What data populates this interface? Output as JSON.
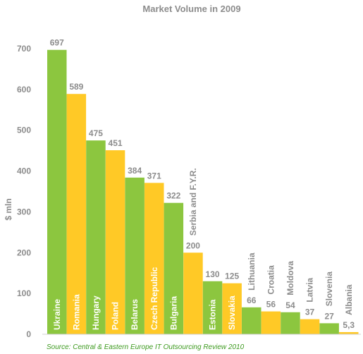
{
  "chart_data": {
    "type": "bar",
    "title": "Market Volume in 2009",
    "ylabel": "$ mln",
    "xlabel": "",
    "ylim": [
      0,
      800
    ],
    "yticks": [
      0,
      100,
      200,
      300,
      400,
      500,
      600,
      700
    ],
    "grid": false,
    "categories": [
      "Ukraine",
      "Romania",
      "Hungary",
      "Poland",
      "Belarus",
      "Czech Republic",
      "Bulgaria",
      "Serbia and F.Y.R.",
      "Estonia",
      "Slovakia",
      "Lithuania",
      "Croatia",
      "Moldova",
      "Latvia",
      "Slovenia",
      "Albania"
    ],
    "values": [
      697,
      589,
      475,
      451,
      384,
      371,
      322,
      200,
      130,
      125,
      66,
      56,
      54,
      37,
      27,
      5.3
    ],
    "value_labels": [
      "697",
      "589",
      "475",
      "451",
      "384",
      "371",
      "322",
      "200",
      "130",
      "125",
      "66",
      "56",
      "54",
      "37",
      "27",
      "5,3"
    ],
    "bar_colors": [
      "#8cc63f",
      "#ffc926",
      "#8cc63f",
      "#ffc926",
      "#8cc63f",
      "#ffc926",
      "#8cc63f",
      "#ffc926",
      "#8cc63f",
      "#ffc926",
      "#8cc63f",
      "#ffc926",
      "#8cc63f",
      "#ffc926",
      "#8cc63f",
      "#ffc926"
    ],
    "label_colors": {
      "inside": "#ffffff",
      "outside": "#8c8c8c"
    },
    "source": "Source: Central & Eastern Europe IT Outsourcing Review 2010"
  }
}
